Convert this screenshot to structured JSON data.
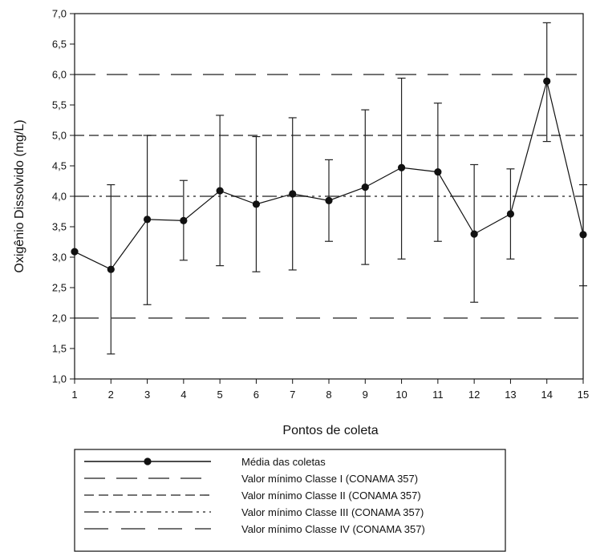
{
  "chart_data": {
    "type": "line",
    "xlabel": "Pontos de coleta",
    "ylabel": "Oxigênio Dissolvido (mg/L)",
    "xlim": [
      1,
      15
    ],
    "ylim": [
      1.0,
      7.0
    ],
    "x_ticks": [
      "1",
      "2",
      "3",
      "4",
      "5",
      "6",
      "7",
      "8",
      "9",
      "10",
      "11",
      "12",
      "13",
      "14",
      "15"
    ],
    "y_ticks": [
      "1,0",
      "1,5",
      "2,0",
      "2,5",
      "3,0",
      "3,5",
      "4,0",
      "4,5",
      "5,0",
      "5,5",
      "6,0",
      "6,5",
      "7,0"
    ],
    "y_tick_values": [
      1.0,
      1.5,
      2.0,
      2.5,
      3.0,
      3.5,
      4.0,
      4.5,
      5.0,
      5.5,
      6.0,
      6.5,
      7.0
    ],
    "grid": false,
    "series": [
      {
        "name": "Média das coletas",
        "x": [
          1,
          2,
          3,
          4,
          5,
          6,
          7,
          8,
          9,
          10,
          11,
          12,
          13,
          14,
          15
        ],
        "values": [
          3.09,
          2.8,
          3.62,
          3.6,
          4.09,
          3.87,
          4.04,
          3.93,
          4.15,
          4.47,
          4.4,
          3.38,
          3.71,
          5.89,
          3.37
        ],
        "error_upper": [
          null,
          4.19,
          5.0,
          4.26,
          5.33,
          4.98,
          5.29,
          4.6,
          5.42,
          5.94,
          5.53,
          4.52,
          4.45,
          6.85,
          4.19
        ],
        "error_lower": [
          null,
          1.41,
          2.22,
          2.95,
          2.86,
          2.76,
          2.79,
          3.26,
          2.88,
          2.97,
          3.26,
          2.26,
          2.97,
          4.9,
          2.53
        ]
      }
    ],
    "reference_lines": [
      {
        "name": "Valor mínimo Classe I (CONAMA 357)",
        "y": 6.0,
        "dash": "longdash"
      },
      {
        "name": "Valor mínimo Classe II (CONAMA 357)",
        "y": 5.0,
        "dash": "dash"
      },
      {
        "name": "Valor mínimo Classe III (CONAMA 357)",
        "y": 4.0,
        "dash": "dashdotdot"
      },
      {
        "name": "Valor mínimo Classe IV (CONAMA 357)",
        "y": 2.0,
        "dash": "longdash2"
      }
    ],
    "legend": {
      "placement": "bottom",
      "items": [
        {
          "label": "Média das coletas",
          "style": "marker-line"
        },
        {
          "label": "Valor mínimo Classe I (CONAMA 357)",
          "style": "longdash"
        },
        {
          "label": "Valor mínimo Classe II (CONAMA 357)",
          "style": "dash"
        },
        {
          "label": "Valor mínimo Classe III (CONAMA 357)",
          "style": "dashdotdot"
        },
        {
          "label": "Valor mínimo Classe IV (CONAMA 357)",
          "style": "longdash2"
        }
      ]
    },
    "colors": {
      "line": "#111111",
      "reference": "#444444",
      "error": "#222222"
    }
  }
}
